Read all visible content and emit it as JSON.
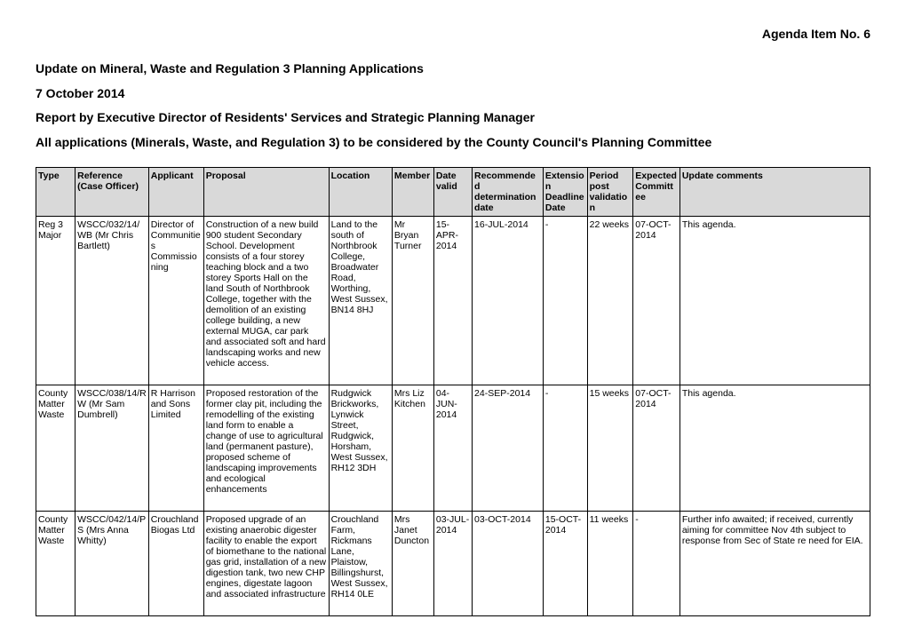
{
  "agenda": "Agenda Item No. 6",
  "headings": [
    "Update on Mineral, Waste and Regulation 3 Planning Applications",
    "7 October 2014",
    "Report by Executive Director of Residents' Services and Strategic Planning Manager",
    "All applications (Minerals, Waste, and Regulation 3) to be considered by the County Council's Planning Committee"
  ],
  "columns": [
    "Type",
    "Reference (Case Officer)",
    "Applicant",
    "Proposal",
    "Location",
    "Member",
    "Date valid",
    "Recommended determination date",
    "Extension Deadline Date",
    "Period post validation",
    "Expected Committee",
    "Update comments"
  ],
  "col_widths_pct": [
    4.7,
    8.8,
    6.6,
    15.0,
    7.6,
    5.0,
    4.6,
    8.5,
    5.3,
    5.5,
    5.6,
    22.8
  ],
  "rows": [
    {
      "type": "Reg 3 Major",
      "reference": "WSCC/032/14/WB (Mr Chris Bartlett)",
      "applicant": "Director of Communities Commissioning",
      "proposal": "Construction of a new build 900 student Secondary School. Development consists of a four storey teaching block and a two storey Sports Hall on the land South of Northbrook College, together with the demolition of an existing college building, a new external MUGA, car park and associated soft and hard landscaping works and new vehicle access.",
      "location": "Land to the south of Northbrook College, Broadwater Road, Worthing, West Sussex, BN14 8HJ",
      "member": "Mr Bryan Turner",
      "date_valid": "15-APR-2014",
      "rec_det_date": "16-JUL-2014",
      "ext_deadline": "-",
      "period": "22 weeks",
      "committee": "07-OCT-2014",
      "comments": "This agenda."
    },
    {
      "type": "County Matter Waste",
      "reference": "WSCC/038/14/RW (Mr Sam Dumbrell)",
      "applicant": "R Harrison and Sons Limited",
      "proposal": "Proposed restoration of the former clay pit, including the remodelling of the existing land form to enable a change of use to agricultural land (permanent pasture), proposed scheme of landscaping improvements and ecological enhancements",
      "location": "Rudgwick Brickworks, Lynwick Street, Rudgwick, Horsham, West Sussex, RH12 3DH",
      "member": "Mrs Liz Kitchen",
      "date_valid": "04-JUN-2014",
      "rec_det_date": "24-SEP-2014",
      "ext_deadline": "-",
      "period": "15 weeks",
      "committee": "07-OCT-2014",
      "comments": "This agenda."
    },
    {
      "type": "County Matter Waste",
      "reference": "WSCC/042/14/PS (Mrs Anna Whitty)",
      "applicant": "Crouchland Biogas Ltd",
      "proposal": "Proposed upgrade of an existing anaerobic digester facility to enable the export of biomethane to the national gas grid, installation of a new digestion tank, two new CHP engines, digestate lagoon and associated infrastructure",
      "location": "Crouchland Farm, Rickmans Lane, Plaistow, Billingshurst, West Sussex, RH14 0LE",
      "member": "Mrs Janet Duncton",
      "date_valid": "03-JUL-2014",
      "rec_det_date": "03-OCT-2014",
      "ext_deadline": "15-OCT-2014",
      "period": "11 weeks",
      "committee": "-",
      "comments": "Further info awaited; if received, currently aiming for committee Nov 4th subject to response from Sec of State re need for EIA."
    }
  ]
}
